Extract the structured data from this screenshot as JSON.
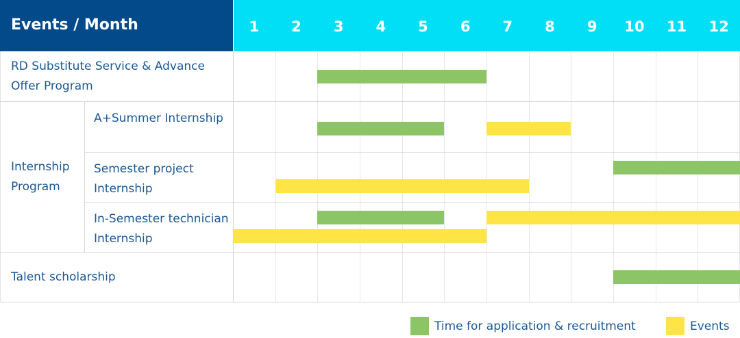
{
  "chart_data": {
    "type": "gantt",
    "title": "Events / Month",
    "months": [
      "1",
      "2",
      "3",
      "4",
      "5",
      "6",
      "7",
      "8",
      "9",
      "10",
      "11",
      "12"
    ],
    "colors": {
      "recruitment": "#8cc566",
      "events": "#ffe445",
      "header_dark": "#034a8a",
      "header_light": "#00dff5",
      "text": "#1a5893"
    },
    "legend": [
      {
        "key": "recruitment",
        "label": "Time for application & recruitment"
      },
      {
        "key": "events",
        "label": "Events"
      }
    ],
    "groups": [
      {
        "label": "RD Substitute Service & Advance Offer Program",
        "rows": [
          {
            "label": "",
            "bars": [
              {
                "type": "recruitment",
                "start": 3,
                "end": 6
              }
            ]
          }
        ]
      },
      {
        "label": "Internship Program",
        "rows": [
          {
            "label": "A+Summer Internship",
            "bars": [
              {
                "type": "recruitment",
                "start": 3,
                "end": 5
              },
              {
                "type": "events",
                "start": 7,
                "end": 8
              }
            ]
          },
          {
            "label": "Semester project Internship",
            "bars": [
              {
                "type": "recruitment",
                "start": 10,
                "end": 12
              },
              {
                "type": "events",
                "start": 2,
                "end": 7
              }
            ]
          },
          {
            "label": "In-Semester technician Internship",
            "bars": [
              {
                "type": "recruitment",
                "start": 3,
                "end": 5
              },
              {
                "type": "events",
                "start": 7,
                "end": 12
              },
              {
                "type": "events",
                "start": 1,
                "end": 6
              }
            ]
          }
        ]
      },
      {
        "label": "Talent scholarship",
        "rows": [
          {
            "label": "",
            "bars": [
              {
                "type": "recruitment",
                "start": 10,
                "end": 12
              }
            ]
          }
        ]
      }
    ]
  }
}
